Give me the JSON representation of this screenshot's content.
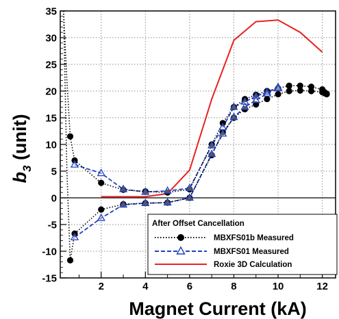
{
  "chart_data": {
    "type": "line",
    "title": "",
    "xlabel": "Magnet Current (kA)",
    "ylabel": {
      "base": "b",
      "subscript": "3",
      "unit": " (unit)"
    },
    "xlim": [
      0.15,
      12.6
    ],
    "ylim": [
      -15,
      35
    ],
    "xticks": [
      2,
      4,
      6,
      8,
      10,
      12
    ],
    "yticks": [
      -15,
      -10,
      -5,
      0,
      5,
      10,
      15,
      20,
      25,
      30,
      35
    ],
    "grid": true,
    "zero_line": true,
    "legend": {
      "placement": "bottom-right",
      "header": "After Offset Cancellation",
      "entries": [
        {
          "label": "MBXFS01b Measured",
          "color": "#000000",
          "dash": "dotted",
          "marker": "filled-circle"
        },
        {
          "label": "MBXFS01 Measured",
          "color": "#1f3fbf",
          "dash": "dashed",
          "marker": "open-triangle"
        },
        {
          "label": "Roxie 3D Calculation",
          "color": "#e82020",
          "dash": "solid",
          "marker": "none"
        }
      ]
    },
    "series": [
      {
        "name": "MBXFS01b Measured",
        "color": "#000000",
        "branches": [
          {
            "x": [
              0.6,
              0.8,
              2.0,
              3.0,
              4.0,
              5.0,
              6.0,
              7.0,
              7.5,
              8.0,
              8.5,
              9.0,
              9.5,
              10.0,
              10.5,
              11.0,
              11.5,
              12.0,
              12.1,
              12.2
            ],
            "y": [
              11.5,
              7.0,
              2.8,
              1.5,
              1.2,
              1.0,
              1.6,
              10.0,
              14.0,
              17.0,
              18.5,
              19.3,
              20.0,
              20.5,
              21.0,
              21.0,
              20.8,
              20.3,
              19.8,
              19.5
            ]
          },
          {
            "x": [
              0.6,
              0.8,
              2.0,
              3.0,
              4.0,
              5.0,
              6.0,
              7.0,
              7.5,
              8.0,
              8.5,
              9.0,
              9.5,
              10.0,
              10.5,
              11.0,
              11.5,
              12.0,
              12.1,
              12.2
            ],
            "y": [
              -11.7,
              -6.7,
              -2.2,
              -1.2,
              -1.0,
              -0.9,
              0.0,
              8.0,
              12.3,
              15.0,
              16.6,
              17.5,
              18.5,
              19.4,
              20.0,
              20.1,
              20.0,
              19.8,
              19.6,
              19.4
            ]
          },
          {
            "x": [
              0.3,
              0.45,
              0.6
            ],
            "y": [
              35,
              22,
              11.5
            ]
          },
          {
            "x": [
              0.3,
              0.45,
              0.6
            ],
            "y": [
              35,
              5,
              -11.7
            ]
          }
        ]
      },
      {
        "name": "MBXFS01 Measured",
        "color": "#1f3fbf",
        "branches": [
          {
            "x": [
              0.8,
              2.0,
              3.0,
              4.0,
              5.0,
              6.0,
              7.0,
              7.5,
              8.0,
              8.5,
              9.0,
              9.5,
              10.0
            ],
            "y": [
              6.2,
              4.6,
              1.6,
              1.1,
              1.3,
              1.8,
              9.8,
              13.2,
              17.0,
              18.0,
              19.0,
              19.8,
              20.7
            ]
          },
          {
            "x": [
              0.8,
              2.0,
              3.0,
              4.0,
              5.0,
              6.0,
              7.0,
              7.5,
              8.0,
              8.5,
              9.0,
              9.5,
              10.0
            ],
            "y": [
              -7.4,
              -3.8,
              -1.3,
              -1.0,
              -0.9,
              0.0,
              8.2,
              12.0,
              15.1,
              17.0,
              18.3,
              19.5,
              20.5
            ]
          }
        ]
      },
      {
        "name": "Roxie 3D Calculation",
        "color": "#e82020",
        "x": [
          2.0,
          3.0,
          4.0,
          5.0,
          6.0,
          7.0,
          8.0,
          9.0,
          10.0,
          11.0,
          12.0
        ],
        "y": [
          0.2,
          0.2,
          0.2,
          0.8,
          5.2,
          18.5,
          29.5,
          33.0,
          33.3,
          31.0,
          27.3
        ]
      }
    ]
  }
}
